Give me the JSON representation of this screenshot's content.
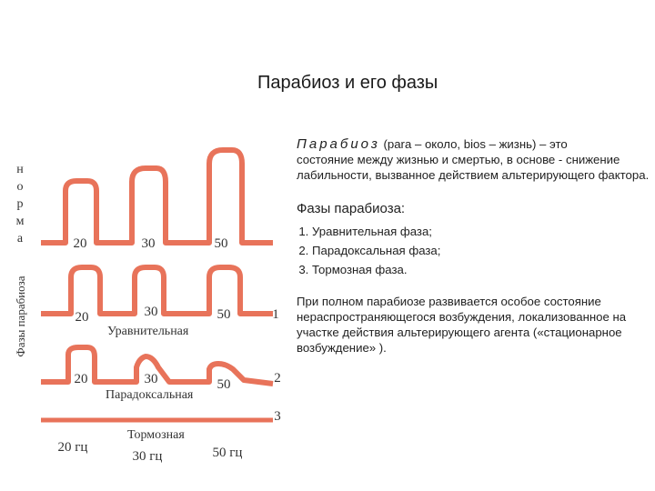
{
  "title": "Парабиоз и его фазы",
  "definition": {
    "term": "Парабиоз",
    "first_line_rest": " (para – около, bios – жизнь) – это",
    "rest": "состояние между жизнью и смертью, в основе - снижение лабильности, вызванное действием альтерирующего фактора."
  },
  "phases_heading": "Фазы парабиоза:",
  "phases": [
    {
      "num": "1.",
      "label": "Уравнительная фаза;"
    },
    {
      "num": "2.",
      "label": "Парадоксальная фаза;"
    },
    {
      "num": "3.",
      "label": "Тормозная фаза."
    }
  ],
  "conclusion": "При полном парабиозе развивается особое состояние нераспространяющегося возбуждения, локализованное на участке действия альтерирующего агента («стационарное возбуждение» ).",
  "figure": {
    "norm_label_letters": [
      "н",
      "о",
      "р",
      "м",
      "а"
    ],
    "phases_vertical_label": "Фазы парабиоза",
    "rows": [
      {
        "stimuli": [
          "20",
          "30",
          "50"
        ],
        "caption": "",
        "number": ""
      },
      {
        "stimuli": [
          "20",
          "30",
          "50"
        ],
        "caption": "Уравнительная",
        "number": "1"
      },
      {
        "stimuli": [
          "20",
          "30",
          "50"
        ],
        "caption": "Парадоксальная",
        "number": "2"
      },
      {
        "stimuli": [],
        "caption": "Тормозная",
        "number": "3"
      }
    ],
    "frequencies": [
      "20 гц",
      "30 гц",
      "50 гц"
    ],
    "trace_color": "#e8735a"
  }
}
